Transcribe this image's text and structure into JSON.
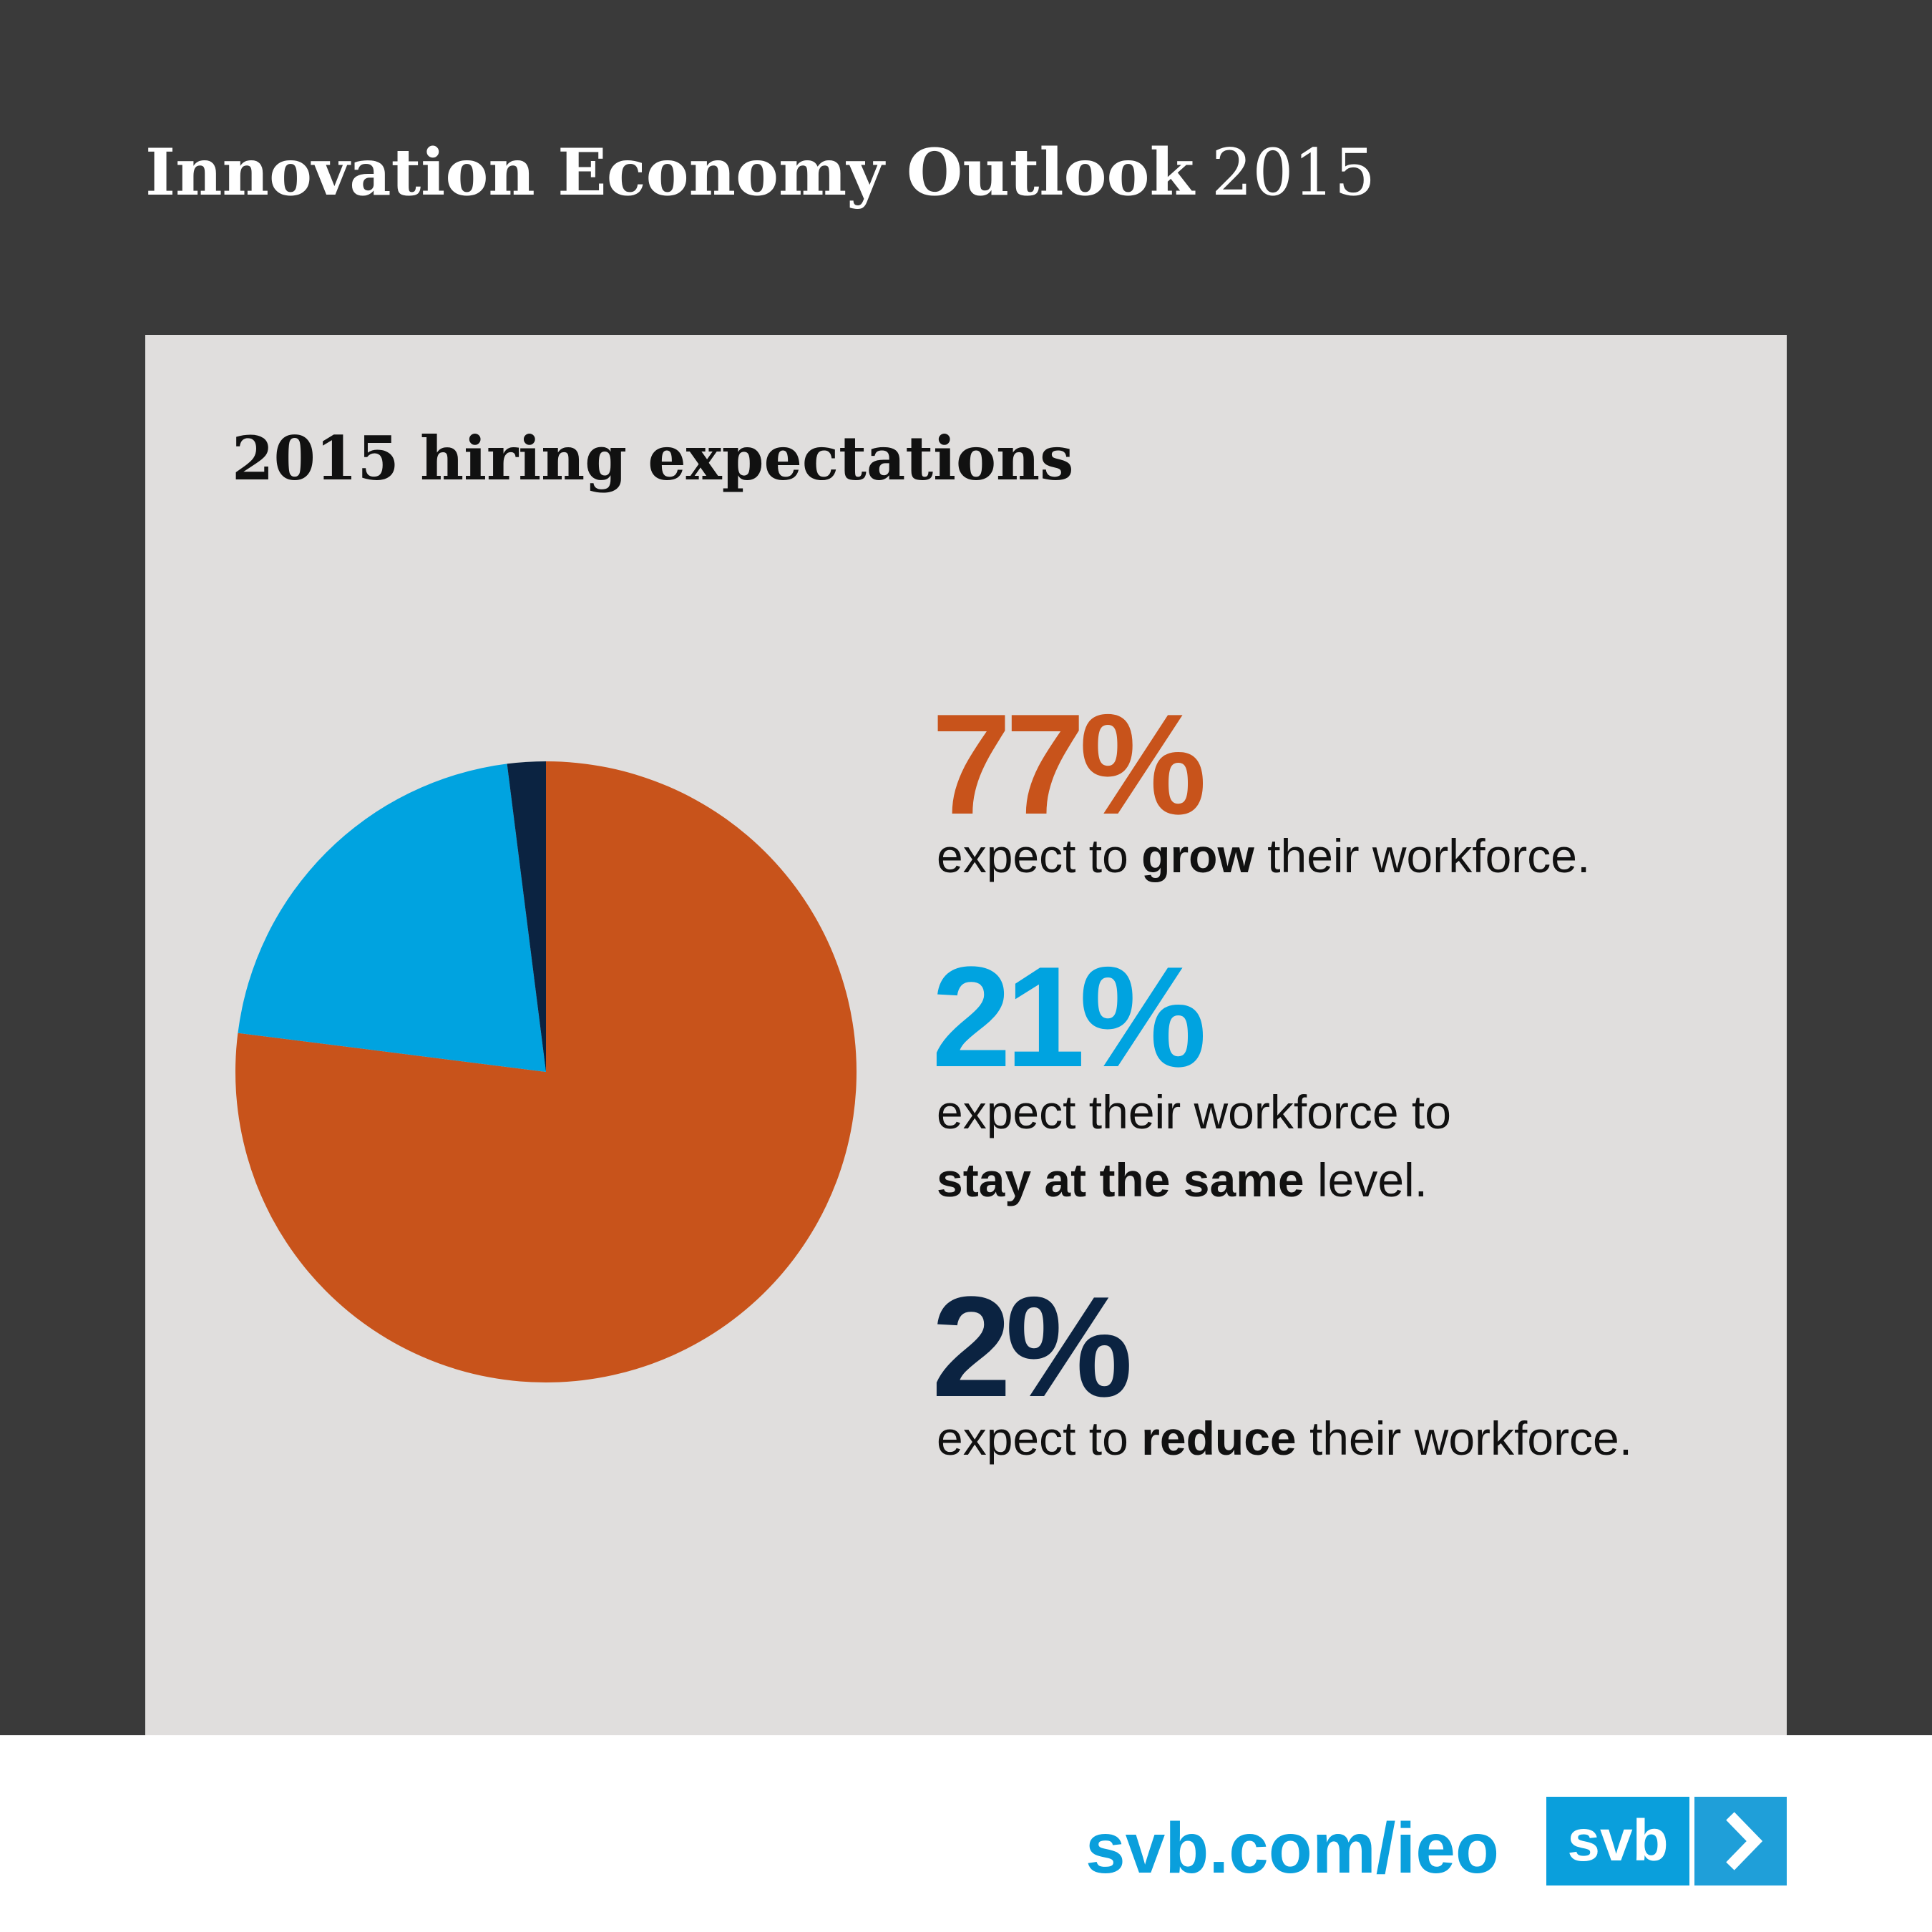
{
  "header": {
    "title": "Innovation Economy Outlook",
    "year": "2015"
  },
  "chart_data": {
    "type": "pie",
    "title": "2015 hiring expectations",
    "values": [
      77,
      21,
      2
    ],
    "value_labels": [
      "77%",
      "21%",
      "2%"
    ],
    "colors": [
      "#c8531b",
      "#00a3e0",
      "#0b2341"
    ],
    "descriptions": [
      [
        [
          {
            "text": "expect to "
          },
          {
            "text": "grow",
            "bold": true
          },
          {
            "text": " their workforce."
          }
        ]
      ],
      [
        [
          {
            "text": "expect their workforce to"
          }
        ],
        [
          {
            "text": "stay at the same",
            "bold": true
          },
          {
            "text": " level."
          }
        ]
      ],
      [
        [
          {
            "text": "expect to "
          },
          {
            "text": "reduce",
            "bold": true
          },
          {
            "text": " their workforce."
          }
        ]
      ]
    ]
  },
  "footer": {
    "url": "svb.com/ieo",
    "logo": "svb"
  }
}
